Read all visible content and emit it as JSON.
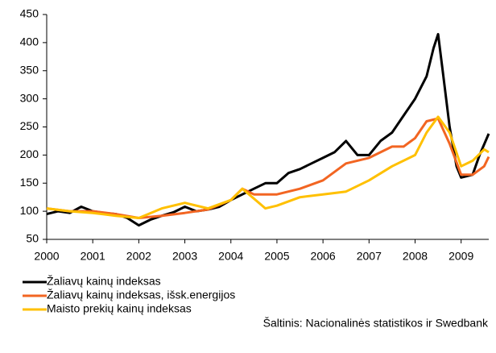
{
  "chart_data": {
    "type": "line",
    "xlim": [
      2000,
      2009.6
    ],
    "xticks": [
      2000,
      2001,
      2002,
      2003,
      2004,
      2005,
      2006,
      2007,
      2008,
      2009
    ],
    "ylim": [
      50,
      450
    ],
    "yticks": [
      50,
      100,
      150,
      200,
      250,
      300,
      350,
      400,
      450
    ],
    "grid": false,
    "legend": "bottom-left",
    "source": "Šaltinis: Nacionalinės statistikos ir Swedbank",
    "series": [
      {
        "name": "Žaliavų kainų indeksas",
        "color": "#000000",
        "x": [
          2000,
          2000.25,
          2000.5,
          2000.75,
          2001,
          2001.25,
          2001.5,
          2001.75,
          2002,
          2002.25,
          2002.5,
          2002.75,
          2003,
          2003.25,
          2003.5,
          2003.75,
          2004,
          2004.25,
          2004.5,
          2004.75,
          2005,
          2005.25,
          2005.5,
          2005.75,
          2006,
          2006.25,
          2006.5,
          2006.75,
          2007,
          2007.25,
          2007.5,
          2007.75,
          2008,
          2008.25,
          2008.4,
          2008.5,
          2008.6,
          2008.75,
          2008.9,
          2009,
          2009.25,
          2009.4,
          2009.6
        ],
        "values": [
          95,
          100,
          97,
          108,
          100,
          97,
          95,
          88,
          75,
          85,
          92,
          98,
          108,
          100,
          103,
          108,
          120,
          130,
          140,
          150,
          150,
          168,
          175,
          185,
          195,
          205,
          225,
          200,
          200,
          225,
          240,
          270,
          300,
          340,
          390,
          415,
          350,
          250,
          180,
          160,
          165,
          200,
          238
        ]
      },
      {
        "name": "Žaliavų kainų indeksas, išsk.energijos",
        "color": "#f26522",
        "x": [
          2000,
          2000.5,
          2001,
          2001.5,
          2002,
          2002.5,
          2003,
          2003.5,
          2004,
          2004.25,
          2004.5,
          2005,
          2005.5,
          2006,
          2006.5,
          2007,
          2007.5,
          2007.75,
          2008,
          2008.25,
          2008.5,
          2008.75,
          2009,
          2009.25,
          2009.5,
          2009.6
        ],
        "values": [
          105,
          100,
          100,
          95,
          88,
          92,
          97,
          103,
          120,
          140,
          130,
          130,
          140,
          155,
          185,
          195,
          215,
          215,
          230,
          260,
          265,
          220,
          165,
          165,
          180,
          197
        ]
      },
      {
        "name": "Maisto prekių kainų indeksas",
        "color": "#ffc000",
        "x": [
          2000,
          2000.5,
          2001,
          2001.5,
          2002,
          2002.5,
          2003,
          2003.5,
          2004,
          2004.25,
          2004.75,
          2005,
          2005.5,
          2006,
          2006.5,
          2007,
          2007.5,
          2008,
          2008.25,
          2008.5,
          2008.75,
          2009,
          2009.25,
          2009.5,
          2009.6
        ],
        "values": [
          105,
          100,
          97,
          92,
          88,
          105,
          115,
          105,
          120,
          140,
          105,
          110,
          125,
          130,
          135,
          155,
          180,
          200,
          240,
          268,
          240,
          180,
          190,
          210,
          205
        ]
      }
    ]
  }
}
